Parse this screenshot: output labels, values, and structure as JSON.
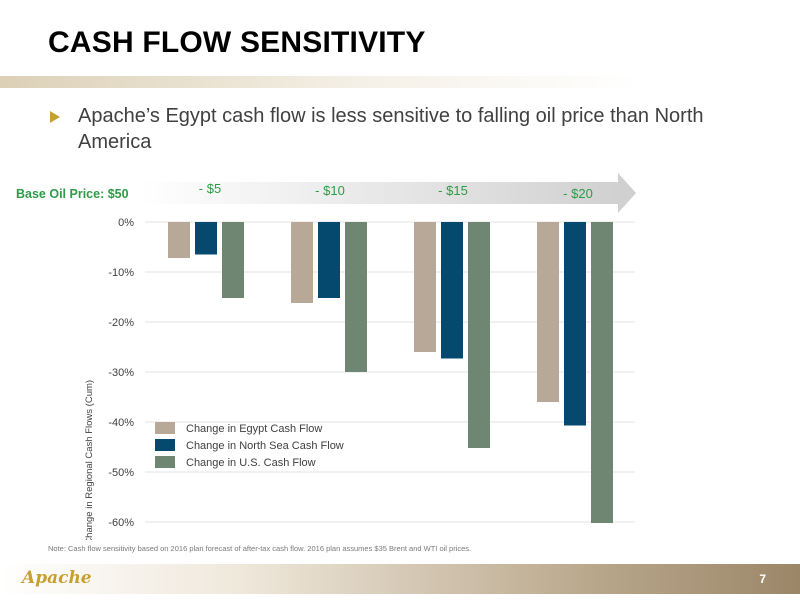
{
  "slide": {
    "title": "CASH FLOW SENSITIVITY",
    "bullet": "Apache’s Egypt cash flow is less sensitive to falling oil price than North America",
    "note": "Note: Cash flow sensitivity based on 2016 plan forecast of after-tax cash flow. 2016 plan assumes $35 Brent and WTI oil prices.",
    "logo": "Apache",
    "page_number": "7",
    "accent_color": "#c8a032"
  },
  "chart_data": {
    "type": "bar",
    "base_label": "Base Oil Price: $50",
    "categories": [
      "- $5",
      "- $10",
      "- $15",
      "- $20"
    ],
    "ylabel": "Percent Change in Regional Cash Flows (Cum)",
    "ylim": [
      -60,
      0
    ],
    "yticks": [
      0,
      -10,
      -20,
      -30,
      -40,
      -50,
      -60
    ],
    "ytick_labels": [
      "0%",
      "-10%",
      "-20%",
      "-30%",
      "-40%",
      "-50%",
      "-60%"
    ],
    "grid": true,
    "legend_position": "bottom-left",
    "series": [
      {
        "name": "Change in Egypt Cash Flow",
        "color": "#b7a898",
        "values": [
          -7.2,
          -16.2,
          -26,
          -36
        ]
      },
      {
        "name": "Change in North Sea Cash Flow",
        "color": "#054a6e",
        "values": [
          -6.5,
          -15.2,
          -27.3,
          -40.7
        ]
      },
      {
        "name": "Change in U.S. Cash Flow",
        "color": "#6e8672",
        "values": [
          -15.2,
          -30,
          -45.2,
          -60.2
        ]
      }
    ],
    "colors": {
      "base_label": "#2e9b46",
      "category_labels": "#2e9b46",
      "arrow": "#d9d9d9"
    }
  }
}
